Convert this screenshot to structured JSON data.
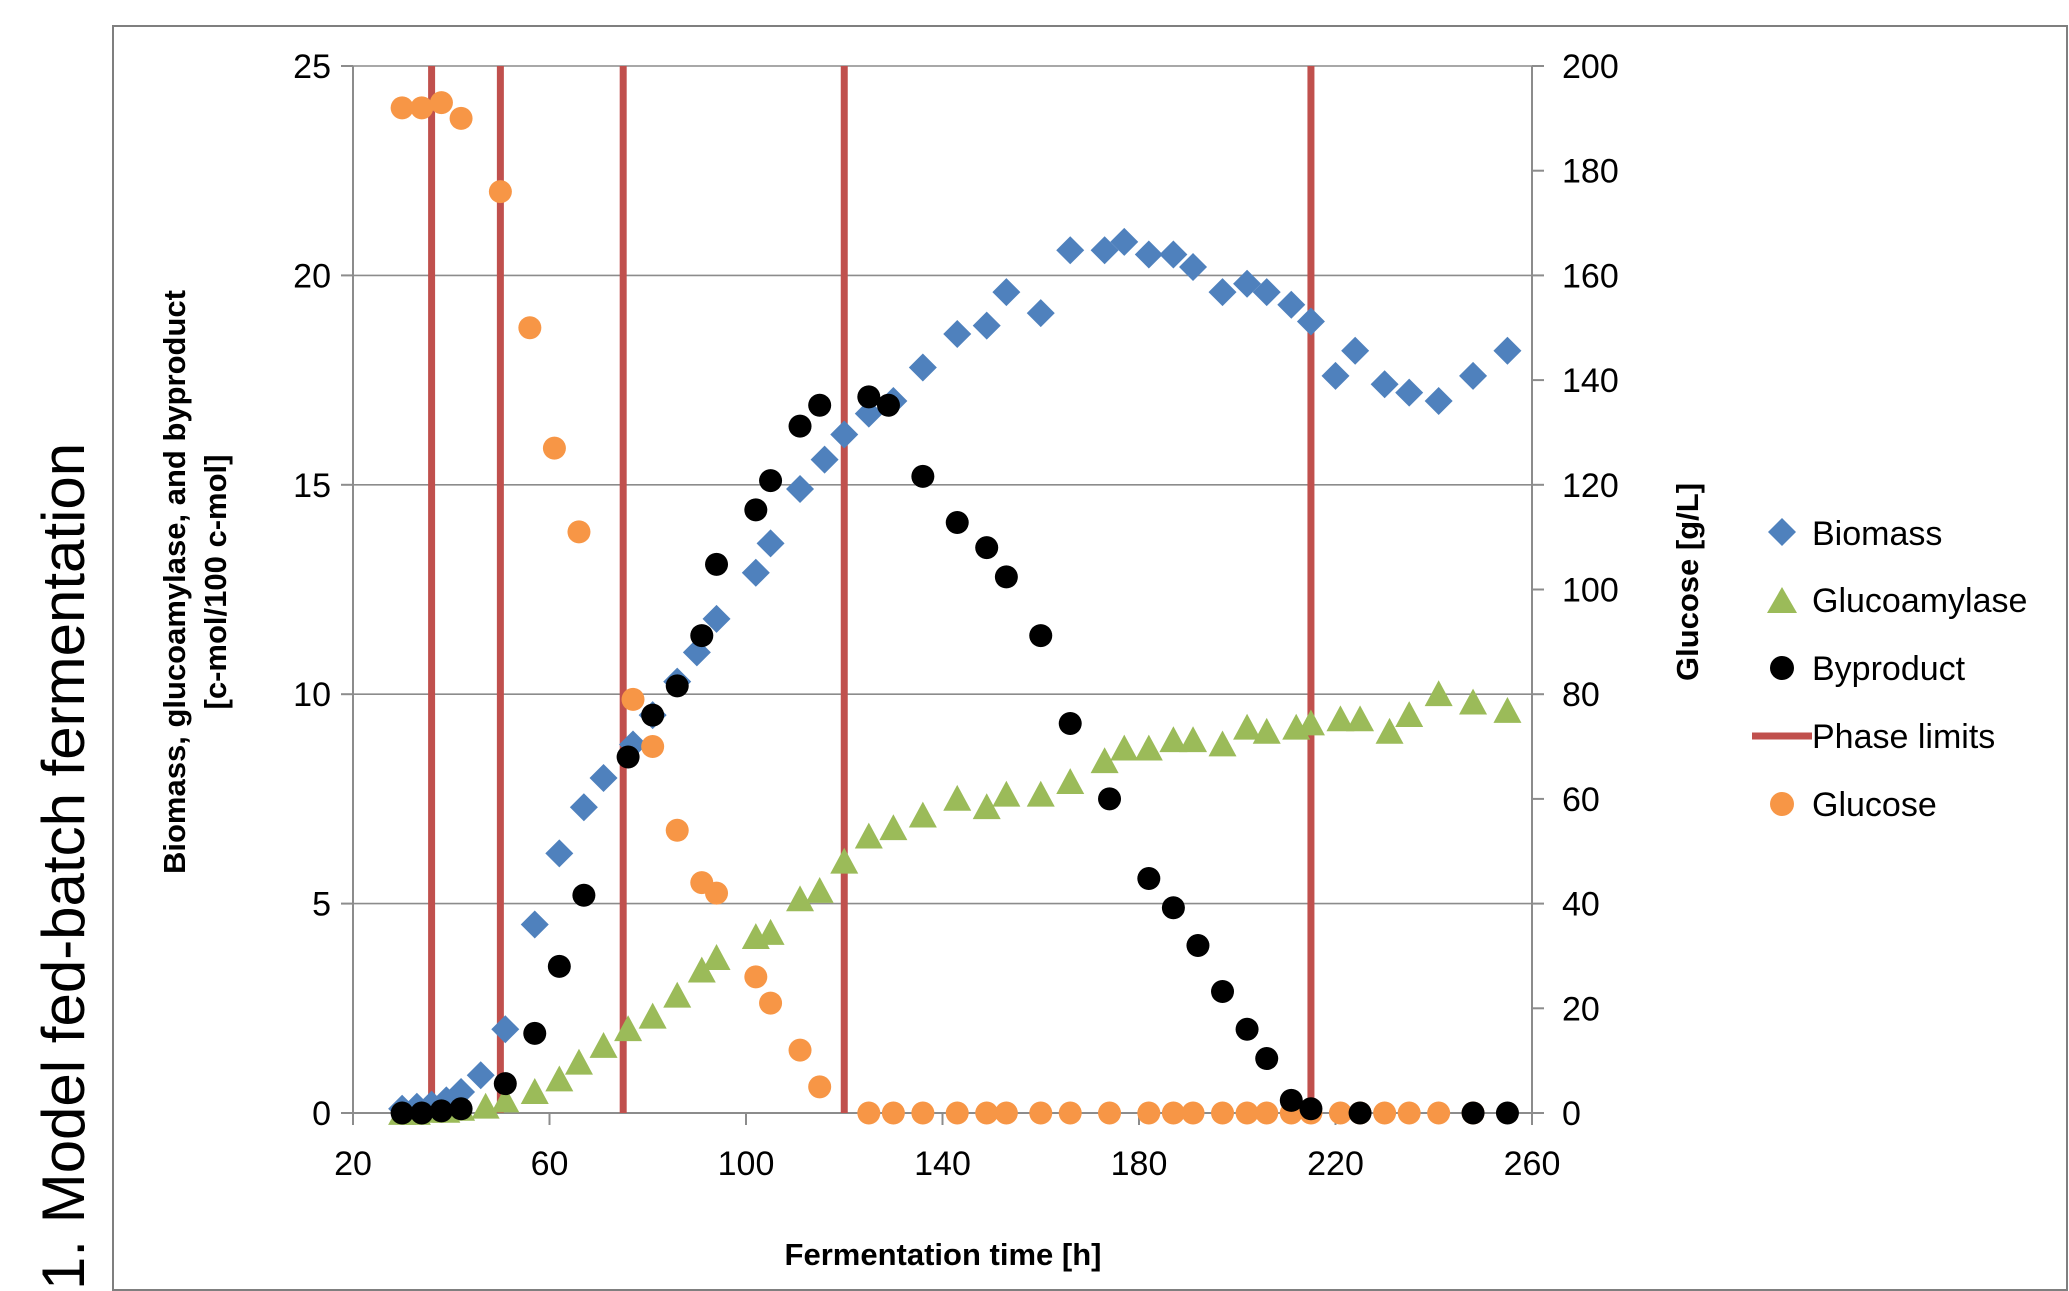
{
  "side_title": "1. Model fed-batch fermentation",
  "chart_data": {
    "type": "scatter",
    "xlabel": "Fermentation time  [h]",
    "ylabel_left_line1": "Biomass, glucoamylase,  and byproduct",
    "ylabel_left_line2": "[c-mol/100 c-mol]",
    "ylabel_right": "Glucose [g/L]",
    "xlim": [
      20,
      260
    ],
    "ylim_left": [
      0,
      25
    ],
    "ylim_right": [
      0,
      200
    ],
    "xticks": [
      "20",
      "60",
      "100",
      "140",
      "180",
      "220",
      "260"
    ],
    "yticks_left": [
      "0",
      "5",
      "10",
      "15",
      "20",
      "25"
    ],
    "yticks_right": [
      "0",
      "20",
      "40",
      "60",
      "80",
      "100",
      "120",
      "140",
      "160",
      "180",
      "200"
    ],
    "grid": "horizontal",
    "legend_position": "right",
    "legend": [
      "Biomass",
      "Glucoamylase",
      "Byproduct",
      "Phase limits",
      "Glucose"
    ],
    "colors": {
      "Biomass": "#4f81bd",
      "Glucoamylase": "#9bbb59",
      "Byproduct": "#000000",
      "Phase limits": "#c0504d",
      "Glucose": "#f79646"
    },
    "series": [
      {
        "name": "Biomass",
        "marker": "diamond",
        "axis": "left",
        "x": [
          30,
          33,
          36,
          39,
          42,
          46,
          51,
          57,
          62,
          67,
          71,
          77,
          81,
          86,
          90,
          94,
          102,
          105,
          111,
          116,
          120,
          125,
          130,
          136,
          143,
          149,
          153,
          160,
          166,
          173,
          177,
          182,
          187,
          191,
          197,
          202,
          206,
          211,
          215,
          220,
          224,
          230,
          235,
          241,
          248,
          255
        ],
        "y": [
          0.1,
          0.15,
          0.2,
          0.3,
          0.5,
          0.9,
          2.0,
          4.5,
          6.2,
          7.3,
          8.0,
          8.8,
          9.5,
          10.3,
          11.0,
          11.8,
          12.9,
          13.6,
          14.9,
          15.6,
          16.2,
          16.7,
          17.0,
          17.8,
          18.6,
          18.8,
          19.6,
          19.1,
          20.6,
          20.6,
          20.8,
          20.5,
          20.5,
          20.2,
          19.6,
          19.8,
          19.6,
          19.3,
          18.9,
          17.6,
          18.2,
          17.4,
          17.2,
          17.0,
          17.6,
          18.2
        ]
      },
      {
        "name": "Glucoamylase",
        "marker": "triangle",
        "axis": "left",
        "x": [
          30,
          33,
          36,
          39,
          42,
          47,
          51,
          57,
          62,
          66,
          71,
          76,
          81,
          86,
          91,
          94,
          102,
          105,
          111,
          115,
          120,
          125,
          130,
          136,
          143,
          149,
          153,
          160,
          166,
          173,
          177,
          182,
          187,
          191,
          197,
          202,
          206,
          212,
          215,
          221,
          225,
          231,
          235,
          241,
          248,
          255
        ],
        "y": [
          0.0,
          0.0,
          0.05,
          0.05,
          0.1,
          0.15,
          0.3,
          0.5,
          0.8,
          1.2,
          1.6,
          2.0,
          2.3,
          2.8,
          3.4,
          3.7,
          4.2,
          4.3,
          5.1,
          5.3,
          6.0,
          6.6,
          6.8,
          7.1,
          7.5,
          7.3,
          7.6,
          7.6,
          7.9,
          8.4,
          8.7,
          8.7,
          8.9,
          8.9,
          8.8,
          9.2,
          9.1,
          9.2,
          9.3,
          9.4,
          9.4,
          9.1,
          9.5,
          10.0,
          9.8,
          9.6
        ]
      },
      {
        "name": "Byproduct",
        "marker": "circle",
        "axis": "left",
        "x": [
          30,
          34,
          38,
          42,
          51,
          57,
          62,
          67,
          76,
          81,
          86,
          91,
          94,
          102,
          105,
          111,
          115,
          125,
          129,
          136,
          143,
          149,
          153,
          160,
          166,
          174,
          182,
          187,
          192,
          197,
          202,
          206,
          211,
          215,
          225,
          248,
          255
        ],
        "y": [
          0.0,
          0.0,
          0.05,
          0.1,
          0.7,
          1.9,
          3.5,
          5.2,
          8.5,
          9.5,
          10.2,
          11.4,
          13.1,
          14.4,
          15.1,
          16.4,
          16.9,
          17.1,
          16.9,
          15.2,
          14.1,
          13.5,
          12.8,
          11.4,
          9.3,
          7.5,
          5.6,
          4.9,
          4.0,
          2.9,
          2.0,
          1.3,
          0.3,
          0.1,
          0.0,
          0.0,
          0.0
        ]
      },
      {
        "name": "Glucose",
        "marker": "circle",
        "axis": "right",
        "x": [
          30,
          34,
          38,
          42,
          50,
          56,
          61,
          66,
          77,
          81,
          86,
          91,
          94,
          102,
          105,
          111,
          115,
          125,
          130,
          136,
          143,
          149,
          153,
          160,
          166,
          174,
          182,
          187,
          191,
          197,
          202,
          206,
          211,
          215,
          221,
          225,
          230,
          235,
          241,
          248
        ],
        "y": [
          192,
          192,
          193,
          190,
          176,
          150,
          127,
          111,
          79,
          70,
          54,
          44,
          42,
          26,
          21,
          12,
          5,
          0,
          0,
          0,
          0,
          0,
          0,
          0,
          0,
          0,
          0,
          0,
          0,
          0,
          0,
          0,
          0,
          0,
          0,
          0,
          0,
          0,
          0,
          0
        ]
      }
    ],
    "phase_limits": [
      36,
      50,
      75,
      120,
      215
    ]
  }
}
